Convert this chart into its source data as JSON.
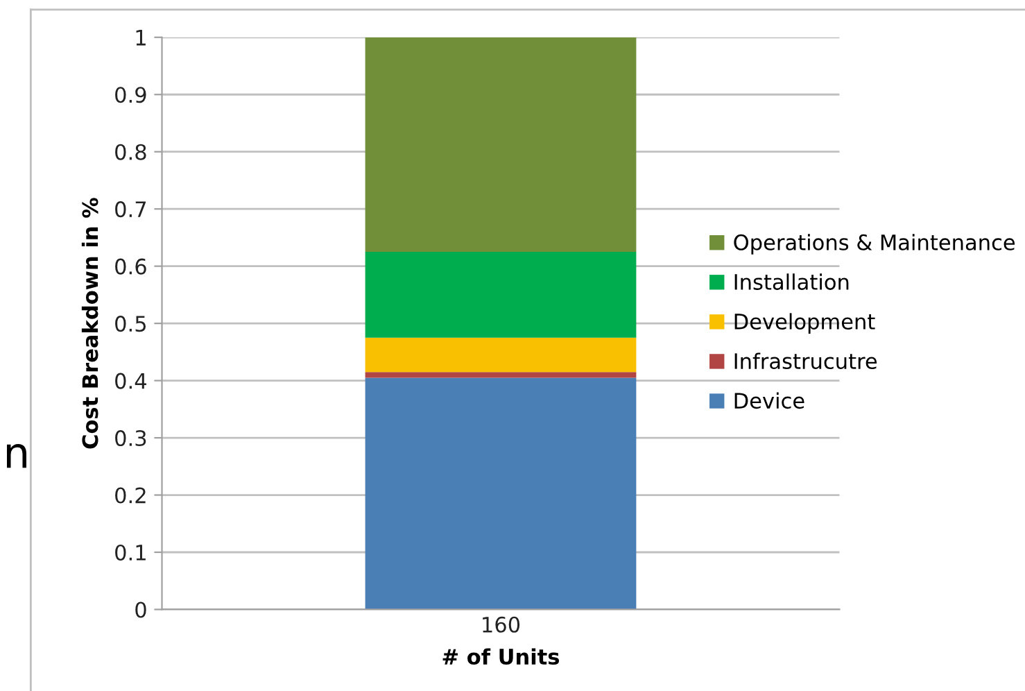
{
  "chart_data": {
    "type": "bar",
    "stacked": true,
    "ylabel": "Cost Breakdown in %",
    "xlabel": "# of Units",
    "categories": [
      "160"
    ],
    "series": [
      {
        "name": "Device",
        "color": "#4a7fb5",
        "values": [
          0.405
        ]
      },
      {
        "name": "Infrastrucutre",
        "color": "#b04543",
        "values": [
          0.01
        ]
      },
      {
        "name": "Development",
        "color": "#f8c000",
        "values": [
          0.06
        ]
      },
      {
        "name": "Installation",
        "color": "#00ad4e",
        "values": [
          0.15
        ]
      },
      {
        "name": "Operations & Maintenance",
        "color": "#718f38",
        "values": [
          0.375
        ]
      }
    ],
    "ylim": [
      0,
      1
    ],
    "yticks": [
      0,
      0.1,
      0.2,
      0.3,
      0.4,
      0.5,
      0.6,
      0.7,
      0.8,
      0.9,
      1
    ],
    "grid": "y",
    "legend": "right",
    "annotations": [
      "n"
    ]
  }
}
